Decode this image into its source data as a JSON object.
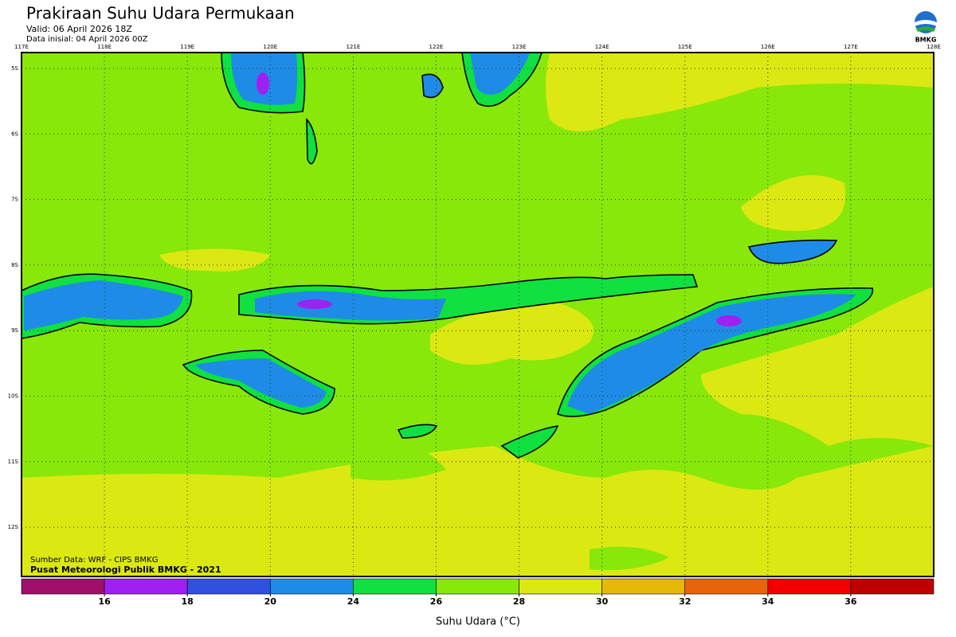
{
  "header": {
    "title": "Prakiraan Suhu Udara Permukaan",
    "valid": "Valid: 06 April 2026 18Z",
    "init": "Data inisial: 04 April 2026 00Z",
    "logo_label": "BMKG"
  },
  "map": {
    "lon_labels": [
      "117E",
      "118E",
      "119E",
      "120E",
      "121E",
      "122E",
      "123E",
      "124E",
      "125E",
      "126E",
      "127E",
      "128E"
    ],
    "lat_labels": [
      "5S",
      "6S",
      "7S",
      "8S",
      "9S",
      "10S",
      "11S",
      "12S"
    ],
    "credits": [
      "Sumber Data: WRF - CIPS BMKG",
      "Pusat Meteorologi Publik BMKG - 2021"
    ]
  },
  "colorbar": {
    "ticks": [
      16,
      18,
      20,
      24,
      26,
      28,
      30,
      32,
      34,
      36
    ],
    "colors": [
      "#a0106a",
      "#a020f0",
      "#3050e0",
      "#1e8ce6",
      "#10e040",
      "#88e80a",
      "#dce812",
      "#e6b80a",
      "#e8640a",
      "#f00000",
      "#c00000"
    ],
    "label": "Suhu Udara (°C)"
  }
}
